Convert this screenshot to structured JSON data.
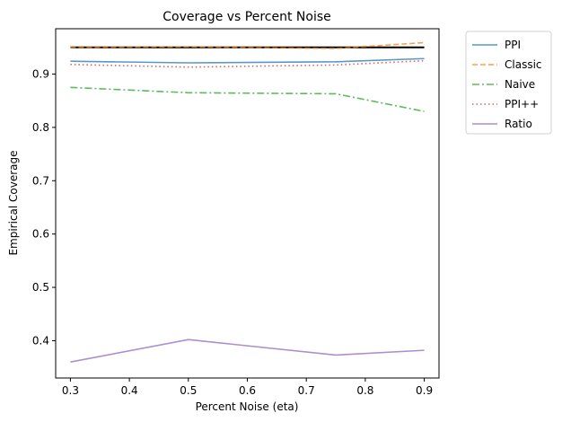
{
  "chart_data": {
    "type": "line",
    "title": "Coverage vs Percent Noise",
    "xlabel": "Percent Noise (eta)",
    "ylabel": "Empirical Coverage",
    "x": [
      0.3,
      0.5,
      0.75,
      0.9
    ],
    "xlim": [
      0.275,
      0.925
    ],
    "ylim": [
      0.33,
      0.985
    ],
    "xticks": [
      0.3,
      0.4,
      0.5,
      0.6,
      0.7,
      0.8,
      0.9
    ],
    "xtick_labels": [
      "0.3",
      "0.4",
      "0.5",
      "0.6",
      "0.7",
      "0.8",
      "0.9"
    ],
    "yticks": [
      0.4,
      0.5,
      0.6,
      0.7,
      0.8,
      0.9
    ],
    "ytick_labels": [
      "0.4",
      "0.5",
      "0.6",
      "0.7",
      "0.8",
      "0.9"
    ],
    "grid": false,
    "legend_position": "outside-top-right",
    "reference_line": {
      "y": 0.95,
      "color": "#000000"
    },
    "series": [
      {
        "name": "PPI",
        "values": [
          0.924,
          0.921,
          0.923,
          0.929
        ],
        "color": "#1f77b4",
        "dash": "solid"
      },
      {
        "name": "Classic",
        "values": [
          0.95,
          0.951,
          0.948,
          0.959
        ],
        "color": "#ff7f0e",
        "dash": "dashed"
      },
      {
        "name": "Naive",
        "values": [
          0.875,
          0.865,
          0.863,
          0.83
        ],
        "color": "#2ca02c",
        "dash": "dashdot"
      },
      {
        "name": "PPI++",
        "values": [
          0.918,
          0.913,
          0.917,
          0.925
        ],
        "color": "#d62728",
        "dash": "dotted"
      },
      {
        "name": "Ratio",
        "values": [
          0.36,
          0.402,
          0.373,
          0.382
        ],
        "color": "#9467bd",
        "dash": "solid"
      }
    ]
  }
}
